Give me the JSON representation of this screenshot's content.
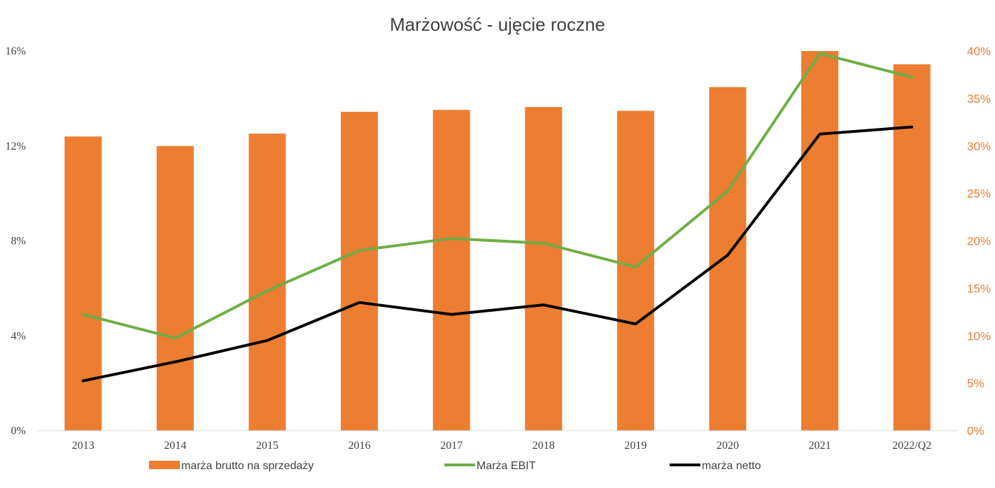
{
  "chart_data": {
    "type": "bar",
    "title": "Marżowość - ujęcie roczne",
    "categories": [
      "2013",
      "2014",
      "2015",
      "2016",
      "2017",
      "2018",
      "2019",
      "2020",
      "2021",
      "2022/Q2"
    ],
    "left_axis": {
      "ticks": [
        "0%",
        "4%",
        "8%",
        "12%",
        "16%"
      ],
      "ylim": [
        0,
        16
      ],
      "unit": "%"
    },
    "right_axis": {
      "ticks": [
        "0%",
        "5%",
        "10%",
        "15%",
        "20%",
        "25%",
        "30%",
        "35%",
        "40%"
      ],
      "ylim": [
        0,
        40
      ],
      "unit": "%"
    },
    "series": [
      {
        "name": "marża brutto na sprzedaży",
        "type": "bar",
        "axis": "right",
        "color": "#ED7D31",
        "values": [
          31.0,
          30.0,
          31.3,
          33.6,
          33.8,
          34.1,
          33.7,
          36.2,
          40.0,
          38.6
        ]
      },
      {
        "name": "Marża EBIT",
        "type": "line",
        "axis": "left",
        "color": "#70AD47",
        "values": [
          4.9,
          3.9,
          5.9,
          7.6,
          8.1,
          7.9,
          6.9,
          10.1,
          15.9,
          14.9
        ]
      },
      {
        "name": "marża netto",
        "type": "line",
        "axis": "left",
        "color": "#000000",
        "values": [
          2.1,
          2.9,
          3.8,
          5.4,
          4.9,
          5.3,
          4.5,
          7.4,
          12.5,
          12.8
        ]
      }
    ],
    "grid": false,
    "legend_position": "bottom"
  }
}
